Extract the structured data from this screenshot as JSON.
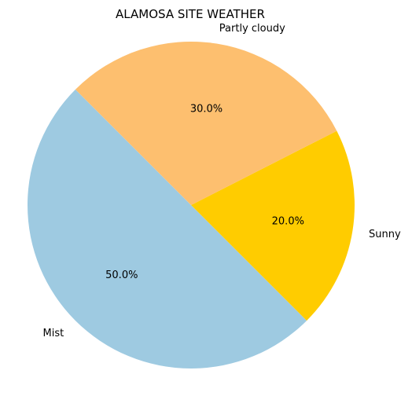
{
  "chart_data": {
    "type": "pie",
    "title": "ALAMOSA SITE WEATHER",
    "categories": [
      "Mist",
      "Sunny",
      "Partly cloudy"
    ],
    "values": [
      50.0,
      20.0,
      30.0
    ],
    "percent_labels": [
      "50.0%",
      "20.0%",
      "30.0%"
    ],
    "colors": [
      "#9ecae1",
      "#ffcc00",
      "#fdbf6f"
    ],
    "start_angle_deg": 135,
    "direction": "counterclockwise",
    "legend": "none"
  }
}
